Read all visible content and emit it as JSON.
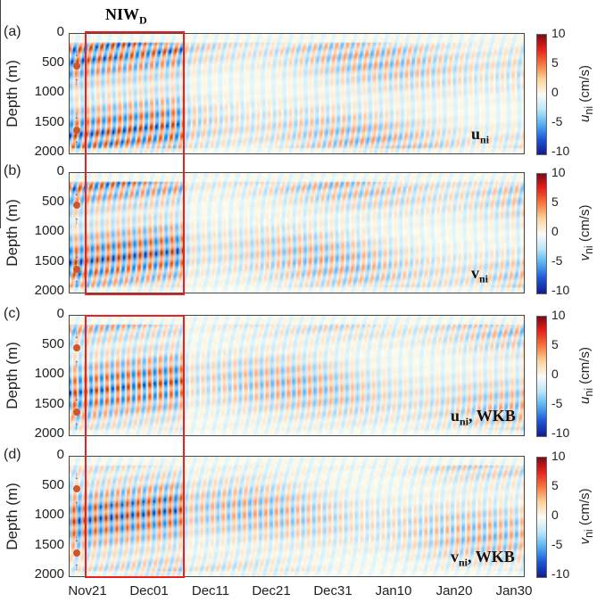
{
  "title": "NIW",
  "title_sub": "D",
  "ylabel": "Depth (m)",
  "yticks": [
    "0",
    "500",
    "1000",
    "1500",
    "2000"
  ],
  "xticks": [
    "Nov21",
    "Dec01",
    "Dec11",
    "Dec21",
    "Dec31",
    "Jan10",
    "Jan20",
    "Jan30"
  ],
  "colorbar_ticks": [
    "10",
    "5",
    "0",
    "-5",
    "-10"
  ],
  "colors": {
    "highlight": "#e8201f",
    "marker": "#1e6fd0",
    "dot": "#d0552a"
  },
  "panels": [
    {
      "label": "(a)",
      "var": "u",
      "var_sub": "ni",
      "var_extra": "",
      "cbar_var": "u",
      "cbar_sub": "ni",
      "cbar_unit": "(cm/s)"
    },
    {
      "label": "(b)",
      "var": "v",
      "var_sub": "ni",
      "var_extra": "",
      "cbar_var": "v",
      "cbar_sub": "ni",
      "cbar_unit": "(cm/s)"
    },
    {
      "label": "(c)",
      "var": "u",
      "var_sub": "ni",
      "var_extra": ", WKB",
      "cbar_var": "u",
      "cbar_sub": "ni",
      "cbar_unit": "(cm/s)"
    },
    {
      "label": "(d)",
      "var": "v",
      "var_sub": "ni",
      "var_extra": ", WKB",
      "cbar_var": "v",
      "cbar_sub": "ni",
      "cbar_unit": "(cm/s)"
    }
  ],
  "chart_data": {
    "type": "heatmap",
    "xlabel": "",
    "ylabel": "Depth (m)",
    "xlim": [
      "Nov18",
      "Jan31"
    ],
    "ylim": [
      2000,
      0
    ],
    "clim": [
      -10,
      10
    ],
    "colorbar_label_unit": "cm/s",
    "highlight_window": [
      "Nov21",
      "Dec06"
    ],
    "mooring_depths_m": [
      550,
      1600
    ],
    "series": [
      {
        "name": "u_ni"
      },
      {
        "name": "v_ni"
      },
      {
        "name": "u_ni, WKB"
      },
      {
        "name": "v_ni, WKB"
      }
    ]
  }
}
